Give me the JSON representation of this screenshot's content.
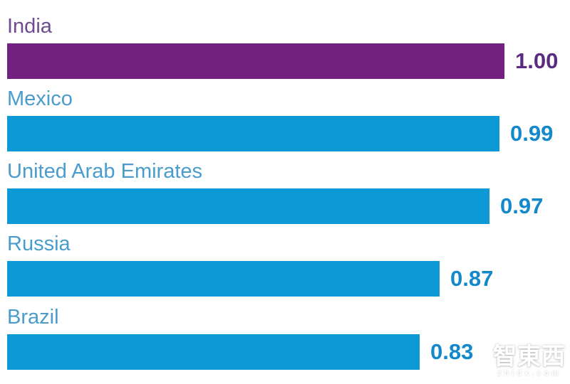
{
  "chart_data": {
    "type": "bar",
    "orientation": "horizontal",
    "title": "",
    "xlabel": "",
    "ylabel": "",
    "categories": [
      "India",
      "Mexico",
      "United Arab Emirates",
      "Russia",
      "Brazil"
    ],
    "values": [
      1.0,
      0.99,
      0.97,
      0.87,
      0.83
    ],
    "value_labels": [
      "1.00",
      "0.99",
      "0.97",
      "0.87",
      "0.83"
    ],
    "xlim": [
      0,
      1.0
    ],
    "grid": false,
    "legend": false,
    "value_label_position": "right-of-bar",
    "bar_colors": [
      "#732181",
      "#0d99d6",
      "#0d99d6",
      "#0d99d6",
      "#0d99d6"
    ],
    "label_colors": [
      "#6f4b91",
      "#4a9ccd",
      "#4a9ccd",
      "#4a9ccd",
      "#4a9ccd"
    ],
    "value_colors": [
      "#5b2b83",
      "#1389cb",
      "#1389cb",
      "#1389cb",
      "#1389cb"
    ]
  },
  "watermark": {
    "text": "智東西",
    "subtext": "zhidx.com"
  }
}
